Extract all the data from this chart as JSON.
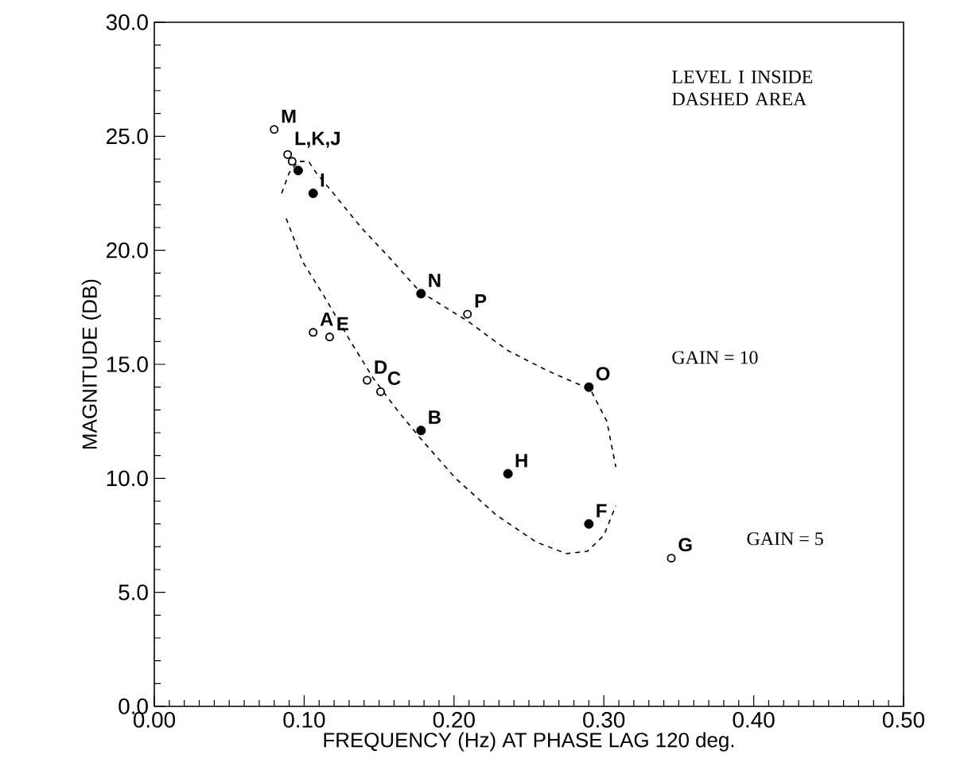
{
  "chart_data": {
    "type": "scatter",
    "xlabel": "FREQUENCY (Hz) AT PHASE LAG 120 deg.",
    "ylabel": "MAGNITUDE (DB)",
    "xlim": [
      0,
      0.5
    ],
    "ylim": [
      0,
      30
    ],
    "xticks": [
      {
        "value": 0,
        "label": "0.00"
      },
      {
        "value": 0.1,
        "label": "0.10"
      },
      {
        "value": 0.2,
        "label": "0.20"
      },
      {
        "value": 0.3,
        "label": "0.30"
      },
      {
        "value": 0.4,
        "label": "0.40"
      },
      {
        "value": 0.5,
        "label": "0.50"
      }
    ],
    "yticks": [
      {
        "value": 0,
        "label": "0.0"
      },
      {
        "value": 5,
        "label": "5.0"
      },
      {
        "value": 10,
        "label": "10.0"
      },
      {
        "value": 15,
        "label": "15.0"
      },
      {
        "value": 20,
        "label": "20.0"
      },
      {
        "value": 25,
        "label": "25.0"
      },
      {
        "value": 30,
        "label": "30.0"
      }
    ],
    "marker": "circle",
    "series": [
      {
        "type": "line",
        "line_style": "dashed",
        "marker": "none",
        "color": "#000000",
        "x": [
          0.085,
          0.09,
          0.096,
          0.103,
          0.108,
          0.117,
          0.138,
          0.158,
          0.177,
          0.209,
          0.236,
          0.263,
          0.291,
          0.302,
          0.308
        ],
        "values": [
          22.5,
          23.4,
          23.9,
          23.9,
          23.4,
          22.7,
          21.0,
          19.6,
          18.2,
          16.9,
          15.6,
          14.7,
          13.9,
          12.5,
          10.5
        ]
      },
      {
        "type": "line",
        "line_style": "dashed",
        "marker": "none",
        "color": "#000000",
        "x": [
          0.088,
          0.099,
          0.115,
          0.131,
          0.146,
          0.162,
          0.177,
          0.201,
          0.228,
          0.255,
          0.275,
          0.289,
          0.3,
          0.308
        ],
        "values": [
          21.4,
          19.5,
          17.8,
          16.0,
          14.4,
          13.0,
          11.8,
          10.0,
          8.4,
          7.2,
          6.7,
          6.8,
          7.5,
          8.8
        ]
      },
      {
        "color": "#000000",
        "x": [
          0.096,
          0.106,
          0.178,
          0.29,
          0.178,
          0.236,
          0.29
        ],
        "values": [
          23.5,
          22.5,
          18.1,
          14.0,
          12.1,
          10.2,
          8.0
        ]
      },
      {
        "color": "#000000",
        "x": [
          0.08,
          0.089,
          0.092,
          0.209,
          0.106,
          0.117,
          0.142,
          0.151,
          0.345
        ],
        "values": [
          25.3,
          24.2,
          23.9,
          17.2,
          16.4,
          16.2,
          14.3,
          13.8,
          6.5
        ]
      }
    ],
    "annotations": [
      "LEVEL I INSIDE DASHED AREA",
      "GAIN = 10",
      "GAIN = 5",
      {
        "text": "M",
        "x": 0.08,
        "y": 25.3
      },
      {
        "text": "L,K,J",
        "x": 0.089,
        "y": 24.2
      },
      {
        "text": "I",
        "x": 0.106,
        "y": 22.5
      },
      {
        "text": "N",
        "x": 0.178,
        "y": 18.1
      },
      {
        "text": "P",
        "x": 0.209,
        "y": 17.2
      },
      {
        "text": "A",
        "x": 0.106,
        "y": 16.4
      },
      {
        "text": "E",
        "x": 0.117,
        "y": 16.2
      },
      {
        "text": "D",
        "x": 0.142,
        "y": 14.3
      },
      {
        "text": "C",
        "x": 0.151,
        "y": 13.8
      },
      {
        "text": "B",
        "x": 0.178,
        "y": 12.1
      },
      {
        "text": "O",
        "x": 0.29,
        "y": 14.0
      },
      {
        "text": "H",
        "x": 0.236,
        "y": 10.2
      },
      {
        "text": "F",
        "x": 0.29,
        "y": 8.0
      },
      {
        "text": "G",
        "x": 0.345,
        "y": 6.5
      }
    ]
  }
}
